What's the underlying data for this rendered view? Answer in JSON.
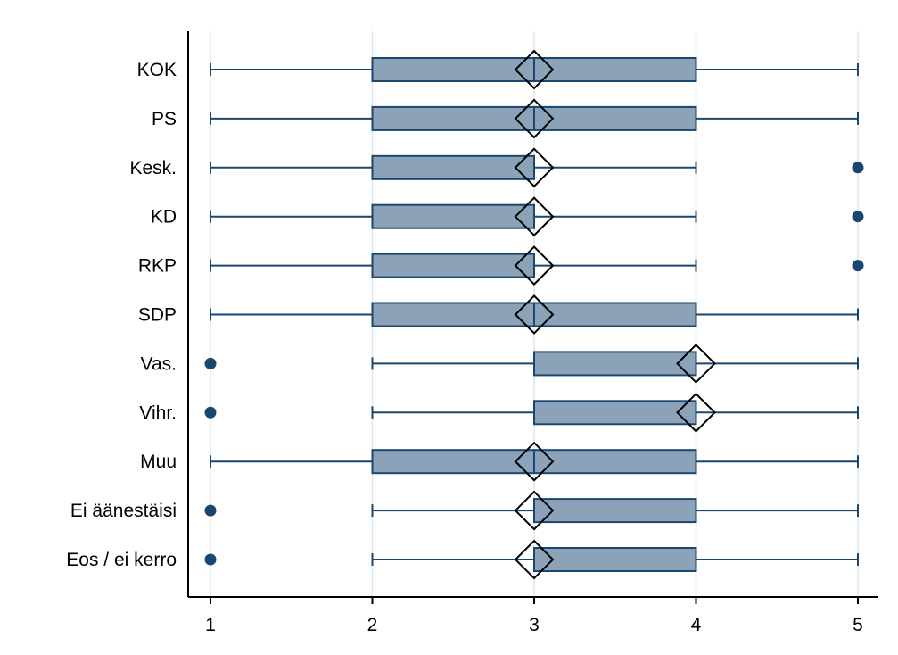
{
  "chart_data": {
    "type": "boxplot",
    "title": "",
    "xlabel": "",
    "ylabel": "",
    "xlim": [
      1,
      5
    ],
    "xticks": [
      1,
      2,
      3,
      4,
      5
    ],
    "grid": true,
    "categories": [
      "KOK",
      "PS",
      "Kesk.",
      "KD",
      "RKP",
      "SDP",
      "Vas.",
      "Vihr.",
      "Muu",
      "Ei äänestäisi",
      "Eos / ei kerro"
    ],
    "boxes": [
      {
        "whisker_low": 1,
        "q1": 2,
        "median": 3,
        "q3": 4,
        "whisker_high": 5,
        "mean": 3.0,
        "outliers": []
      },
      {
        "whisker_low": 1,
        "q1": 2,
        "median": 3,
        "q3": 4,
        "whisker_high": 5,
        "mean": 3.0,
        "outliers": []
      },
      {
        "whisker_low": 1,
        "q1": 2,
        "median": 3,
        "q3": 3,
        "whisker_high": 4,
        "mean": 3.0,
        "outliers": [
          5
        ]
      },
      {
        "whisker_low": 1,
        "q1": 2,
        "median": 3,
        "q3": 3,
        "whisker_high": 4,
        "mean": 3.0,
        "outliers": [
          5
        ]
      },
      {
        "whisker_low": 1,
        "q1": 2,
        "median": 3,
        "q3": 3,
        "whisker_high": 4,
        "mean": 3.0,
        "outliers": [
          5
        ]
      },
      {
        "whisker_low": 1,
        "q1": 2,
        "median": 3,
        "q3": 4,
        "whisker_high": 5,
        "mean": 3.0,
        "outliers": []
      },
      {
        "whisker_low": 2,
        "q1": 3,
        "median": 4,
        "q3": 4,
        "whisker_high": 5,
        "mean": 4.0,
        "outliers": [
          1
        ]
      },
      {
        "whisker_low": 2,
        "q1": 3,
        "median": 4,
        "q3": 4,
        "whisker_high": 5,
        "mean": 4.0,
        "outliers": [
          1
        ]
      },
      {
        "whisker_low": 1,
        "q1": 2,
        "median": 3,
        "q3": 4,
        "whisker_high": 5,
        "mean": 3.0,
        "outliers": []
      },
      {
        "whisker_low": 2,
        "q1": 3,
        "median": 3,
        "q3": 4,
        "whisker_high": 5,
        "mean": 3.0,
        "outliers": [
          1
        ]
      },
      {
        "whisker_low": 2,
        "q1": 3,
        "median": 3,
        "q3": 4,
        "whisker_high": 5,
        "mean": 3.0,
        "outliers": [
          1
        ]
      }
    ],
    "colors": {
      "box_fill": "#8ba2b8",
      "box_stroke": "#1a476f",
      "whisker": "#1a476f",
      "outlier": "#1a476f",
      "mean_marker": "#000000",
      "grid": "#dde9ee",
      "axis": "#000000"
    }
  }
}
